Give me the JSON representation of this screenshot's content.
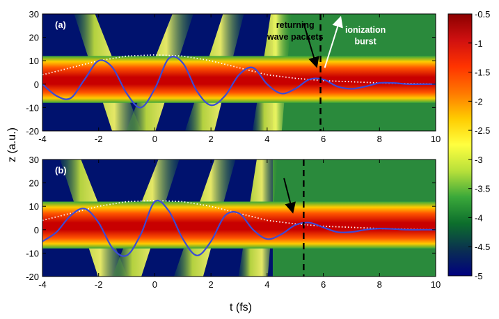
{
  "figure": {
    "xlabel": "t (fs)",
    "ylabel": "z (a.u.)"
  },
  "chart_data": [
    {
      "type": "heatmap",
      "panel_label": "(a)",
      "xlim": [
        -4,
        10
      ],
      "ylim": [
        -20,
        30
      ],
      "x_ticks": [
        -4,
        -2,
        0,
        2,
        4,
        6,
        8,
        10
      ],
      "x_tick_labels": [
        "-4",
        "-2",
        "0",
        "2",
        "4",
        "6",
        "8",
        "10"
      ],
      "y_ticks": [
        30,
        20,
        10,
        0,
        -10,
        -20
      ],
      "y_tick_labels": [
        "30",
        "20",
        "10",
        "0",
        "-10",
        "-20"
      ],
      "core_band_z": [
        -5,
        8
      ],
      "diagonal_streaks_t": [
        {
          "t_start": -2.5,
          "t_end": -1.0
        },
        {
          "t_start": 1.0,
          "t_end": -0.5
        },
        {
          "t_start": 2.8,
          "t_end": 1.6
        },
        {
          "t_start": 4.5,
          "t_end": 4.0
        }
      ],
      "dashed_line_t": 5.9,
      "dotted_envelope": {
        "t": [
          -4,
          -3,
          -2,
          -1,
          0,
          1,
          2,
          3,
          4,
          5,
          6,
          7,
          8,
          9,
          10
        ],
        "z": [
          4,
          7,
          10,
          12,
          12.5,
          12,
          10,
          7,
          4,
          2.5,
          1.5,
          1,
          0.5,
          0.2,
          0
        ]
      },
      "field_curve": {
        "t": [
          -4,
          -3.5,
          -3,
          -2.5,
          -2,
          -1.5,
          -1,
          -0.5,
          0,
          0.5,
          1,
          1.5,
          2,
          2.5,
          3,
          3.5,
          4,
          4.5,
          5,
          5.5,
          6,
          6.5,
          7,
          7.5,
          8,
          8.5,
          9,
          9.5,
          10
        ],
        "z": [
          0,
          -5,
          -6,
          2,
          10,
          7,
          -4,
          -10,
          -2,
          11,
          9,
          -3,
          -9,
          -5,
          4,
          7,
          0,
          -4,
          -2,
          2,
          2,
          -1,
          -2,
          -1,
          0.5,
          0.5,
          0,
          0,
          0
        ]
      },
      "annotations": [
        {
          "text": "returning",
          "t": 5.0,
          "z": 24
        },
        {
          "text": "wave packets",
          "t": 5.0,
          "z": 19
        },
        {
          "text": "ionization",
          "t": 7.5,
          "z": 22
        },
        {
          "text": "burst",
          "t": 7.5,
          "z": 17
        }
      ]
    },
    {
      "type": "heatmap",
      "panel_label": "(b)",
      "xlim": [
        -4,
        10
      ],
      "ylim": [
        -20,
        30
      ],
      "x_ticks": [
        -4,
        -2,
        0,
        2,
        4,
        6,
        8,
        10
      ],
      "x_tick_labels": [
        "-4",
        "-2",
        "0",
        "2",
        "4",
        "6",
        "8",
        "10"
      ],
      "y_ticks": [
        30,
        20,
        10,
        0,
        -10,
        -20
      ],
      "y_tick_labels": [
        "30",
        "20",
        "10",
        "0",
        "-10",
        "-20"
      ],
      "core_band_z": [
        -5,
        8
      ],
      "diagonal_streaks_t": [
        {
          "t_start": -3.0,
          "t_end": -1.5
        },
        {
          "t_start": 0.5,
          "t_end": -1.0
        },
        {
          "t_start": 2.5,
          "t_end": 1.2
        },
        {
          "t_start": 4.0,
          "t_end": 3.5
        }
      ],
      "dashed_line_t": 5.3,
      "dotted_envelope": {
        "t": [
          -4,
          -3,
          -2,
          -1,
          0,
          1,
          2,
          3,
          4,
          5,
          6,
          7,
          8,
          9,
          10
        ],
        "z": [
          4,
          7,
          10,
          12,
          12.5,
          12,
          10,
          7,
          4,
          2.5,
          1.5,
          1,
          0.5,
          0.2,
          0
        ]
      },
      "field_curve": {
        "t": [
          -4,
          -3.5,
          -3,
          -2.5,
          -2,
          -1.5,
          -1,
          -0.5,
          0,
          0.5,
          1,
          1.5,
          2,
          2.5,
          3,
          3.5,
          4,
          4.5,
          5,
          5.5,
          6,
          6.5,
          7,
          7.5,
          8,
          8.5,
          9,
          9.5,
          10
        ],
        "z": [
          -5,
          -1,
          6,
          9,
          3,
          -8,
          -11,
          -2,
          12,
          8,
          -4,
          -11,
          -5,
          6,
          7,
          0,
          -4,
          -2,
          2,
          3,
          1,
          -1,
          -1,
          0,
          0.5,
          0.3,
          0,
          0,
          0
        ]
      },
      "annotations": []
    }
  ],
  "colorbar": {
    "range": [
      -5,
      -0.5
    ],
    "ticks": [
      -0.5,
      -1,
      -1.5,
      -2,
      -2.5,
      -3,
      -3.5,
      -4,
      -4.5,
      -5
    ],
    "tick_labels": [
      "-0.5",
      "-1",
      "-1.5",
      "-2",
      "-2.5",
      "-3",
      "-3.5",
      "-4",
      "-4.5",
      "-5"
    ],
    "colors": [
      "#8b0000",
      "#d01010",
      "#ff3300",
      "#ff7700",
      "#ffcc00",
      "#ffff40",
      "#b7e03a",
      "#3aa83a",
      "#0c6e2c",
      "#0a3050",
      "#000080"
    ]
  }
}
